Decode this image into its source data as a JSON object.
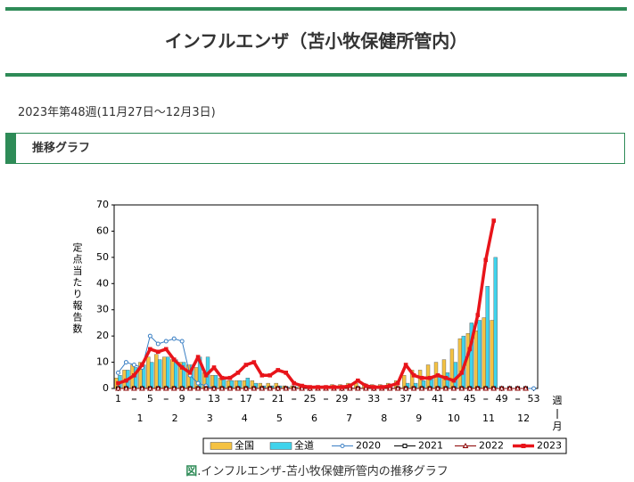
{
  "header": {
    "title": "インフルエンザ（苫小牧保健所管内）"
  },
  "period": "2023年第48週(11月27日～12月3日)",
  "section": {
    "title": "推移グラフ"
  },
  "caption": {
    "prefix": "図",
    "text": ".インフルエンザ-苫小牧保健所管内の推移グラフ"
  },
  "chart_data": {
    "type": "bar-line",
    "y_label": "定点当たり報告数",
    "x_unit": "週",
    "month_unit": "月",
    "x": [
      1,
      2,
      3,
      4,
      5,
      6,
      7,
      8,
      9,
      10,
      11,
      12,
      13,
      14,
      15,
      16,
      17,
      18,
      19,
      20,
      21,
      22,
      23,
      24,
      25,
      26,
      27,
      28,
      29,
      30,
      31,
      32,
      33,
      34,
      35,
      36,
      37,
      38,
      39,
      40,
      41,
      42,
      43,
      44,
      45,
      46,
      47,
      48,
      49,
      50,
      51,
      52,
      53
    ],
    "xlim": [
      0.5,
      53.5
    ],
    "xticks": [
      1,
      5,
      9,
      13,
      17,
      21,
      25,
      29,
      33,
      37,
      41,
      45,
      49,
      53
    ],
    "month_labels": [
      "1",
      "2",
      "3",
      "4",
      "5",
      "6",
      "7",
      "8",
      "9",
      "10",
      "11",
      "12"
    ],
    "ylim": [
      0,
      70
    ],
    "yticks": [
      0,
      10,
      20,
      30,
      40,
      50,
      60,
      70
    ],
    "series": [
      {
        "name": "全国",
        "kind": "bar",
        "color": "#f5c242",
        "values": [
          4,
          7,
          9,
          10,
          12,
          13,
          12,
          11,
          10,
          9,
          8,
          6,
          5,
          4,
          3,
          3,
          3,
          3,
          2,
          2,
          2,
          1,
          1,
          1,
          1,
          1,
          1,
          1.5,
          1.5,
          2,
          2,
          2,
          1.5,
          1.5,
          2,
          3,
          5,
          7,
          7,
          9,
          10,
          11,
          15,
          19,
          21,
          22,
          27,
          26,
          null,
          null,
          null,
          null,
          null
        ]
      },
      {
        "name": "全道",
        "kind": "bar",
        "color": "#3fd3ec",
        "values": [
          5,
          7,
          8,
          9,
          10,
          11,
          12,
          11,
          10,
          9,
          12,
          12,
          5,
          4,
          3,
          3,
          4,
          2,
          1,
          1,
          1,
          0.5,
          0.5,
          0.3,
          0.3,
          0.3,
          0.3,
          0.3,
          0.3,
          0.3,
          0.3,
          0.3,
          0.3,
          0.3,
          0.3,
          0.3,
          2,
          2,
          3,
          4,
          5,
          6,
          10,
          20,
          25,
          26,
          39,
          50,
          null,
          null,
          null,
          null,
          null
        ]
      },
      {
        "name": "2020",
        "kind": "line",
        "marker": "circle",
        "color": "#3a7fc4",
        "values": [
          6,
          10,
          9,
          8,
          20,
          17,
          18,
          19,
          18,
          5,
          2,
          1,
          0,
          0,
          0,
          0,
          0,
          0,
          0,
          0,
          0,
          0,
          0,
          0,
          0,
          0,
          0,
          0,
          0,
          0,
          0,
          0,
          0,
          0,
          0,
          0,
          0,
          0,
          0,
          0,
          0,
          0,
          0,
          0,
          0,
          0,
          0,
          0,
          0,
          0,
          0,
          0,
          0
        ]
      },
      {
        "name": "2021",
        "kind": "line",
        "marker": "square",
        "color": "#000000",
        "values": [
          0,
          0,
          0,
          0,
          0,
          0,
          0,
          0,
          0,
          0,
          0,
          0,
          0,
          0,
          0,
          0,
          0,
          0,
          0,
          0,
          0,
          0,
          0,
          0,
          0,
          0,
          0,
          0,
          0,
          0,
          0,
          0,
          0,
          0,
          0,
          0,
          0,
          0,
          0,
          0,
          0,
          0,
          0,
          0,
          0,
          0,
          0,
          0,
          0,
          0,
          0,
          0,
          null
        ]
      },
      {
        "name": "2022",
        "kind": "line",
        "marker": "triangle",
        "color": "#8b0000",
        "values": [
          0,
          0,
          0,
          0,
          0,
          0,
          0,
          0,
          0,
          0,
          0,
          0,
          0,
          0,
          0,
          0,
          0,
          0,
          0,
          0,
          0,
          0,
          0,
          0,
          0,
          0,
          0,
          0,
          0,
          0,
          0,
          0,
          0,
          0,
          0,
          0,
          0,
          0,
          0,
          0,
          0,
          0,
          0,
          0,
          0,
          0,
          0,
          0,
          0,
          0,
          0,
          0,
          null
        ]
      },
      {
        "name": "2023",
        "kind": "line",
        "marker": "dot",
        "color": "#e8141a",
        "values": [
          2,
          3,
          5,
          9,
          15,
          14,
          15,
          11,
          8,
          6,
          12,
          5,
          8,
          4,
          4,
          6,
          9,
          10,
          5,
          5,
          7,
          6,
          2,
          1,
          0.5,
          0.5,
          0.5,
          0.5,
          0.5,
          1,
          3,
          1,
          0.5,
          0.5,
          1,
          2,
          9,
          5,
          4,
          4,
          5,
          4,
          3,
          6,
          15,
          28,
          49,
          64,
          null,
          null,
          null,
          null,
          null
        ]
      }
    ]
  }
}
